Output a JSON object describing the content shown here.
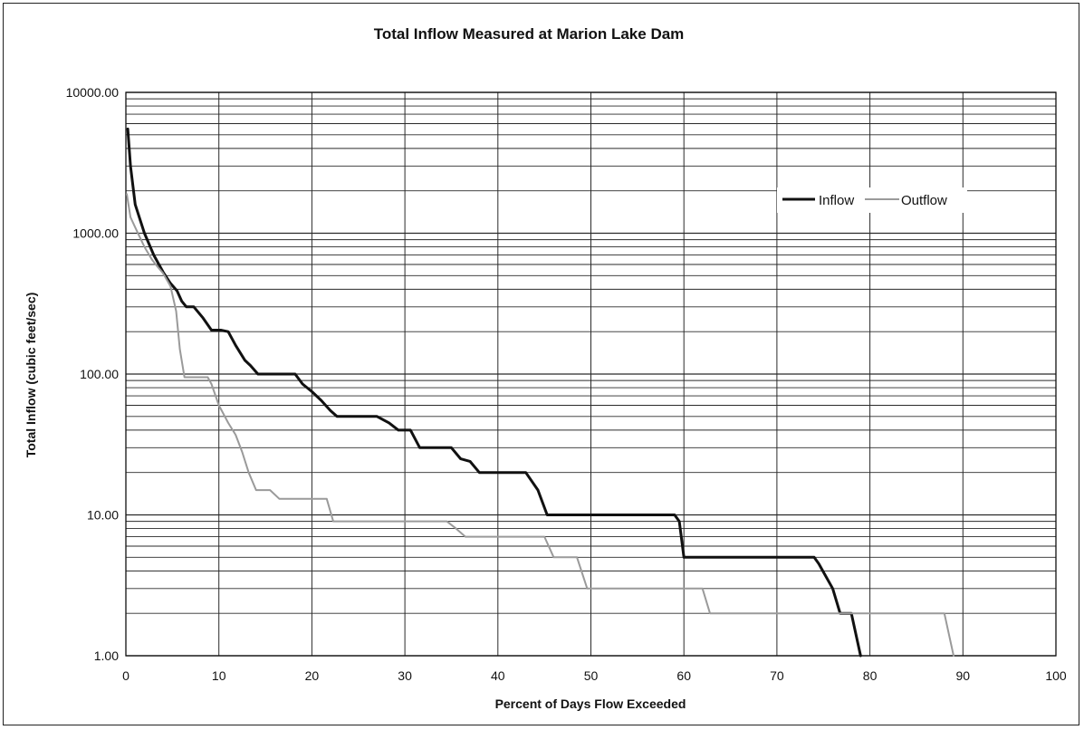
{
  "chart_data": {
    "type": "line",
    "title": "Total Inflow Measured at Marion Lake Dam",
    "xlabel": "Percent of Days Flow Exceeded",
    "ylabel": "Total Inflow (cubic feet/sec)",
    "xlim": [
      0,
      100
    ],
    "ylim": [
      1,
      10000
    ],
    "yscale": "log",
    "grid": true,
    "legend_position": "top-right",
    "x_ticks": [
      "0",
      "10",
      "20",
      "30",
      "40",
      "50",
      "60",
      "70",
      "80",
      "90",
      "100"
    ],
    "y_ticks": [
      "1.00",
      "10.00",
      "100.00",
      "1000.00",
      "10000.00"
    ],
    "colors": {
      "Inflow": "#111111",
      "Outflow": "#9a9a9a",
      "grid": "#2a2a2a"
    },
    "series": [
      {
        "name": "Inflow",
        "points": [
          [
            0.2,
            5500
          ],
          [
            0.5,
            3000
          ],
          [
            1,
            1600
          ],
          [
            2,
            1000
          ],
          [
            3,
            700
          ],
          [
            4,
            530
          ],
          [
            4.8,
            440
          ],
          [
            5.5,
            390
          ],
          [
            6,
            330
          ],
          [
            6.5,
            300
          ],
          [
            7.3,
            300
          ],
          [
            8.3,
            250
          ],
          [
            9.2,
            205
          ],
          [
            10.2,
            205
          ],
          [
            11,
            200
          ],
          [
            11.8,
            160
          ],
          [
            12.8,
            125
          ],
          [
            13.4,
            115
          ],
          [
            14.2,
            100
          ],
          [
            17,
            100
          ],
          [
            18.2,
            100
          ],
          [
            19,
            85
          ],
          [
            20,
            75
          ],
          [
            21,
            65
          ],
          [
            22,
            55
          ],
          [
            22.7,
            50
          ],
          [
            27,
            50
          ],
          [
            28.3,
            45
          ],
          [
            29.3,
            40
          ],
          [
            30.6,
            40
          ],
          [
            31.6,
            30
          ],
          [
            35,
            30
          ],
          [
            36,
            25
          ],
          [
            37,
            24
          ],
          [
            38,
            20
          ],
          [
            43,
            20
          ],
          [
            44.3,
            15
          ],
          [
            45.3,
            10
          ],
          [
            59,
            10
          ],
          [
            59.5,
            9
          ],
          [
            60,
            5
          ],
          [
            60.5,
            5
          ],
          [
            74,
            5
          ],
          [
            74.5,
            4.5
          ],
          [
            76,
            3
          ],
          [
            76.8,
            2
          ],
          [
            78,
            2
          ],
          [
            79,
            1
          ]
        ]
      },
      {
        "name": "Outflow",
        "points": [
          [
            0.1,
            1900
          ],
          [
            0.5,
            1300
          ],
          [
            1,
            1100
          ],
          [
            2,
            800
          ],
          [
            2.8,
            650
          ],
          [
            3.2,
            600
          ],
          [
            4,
            520
          ],
          [
            4.8,
            420
          ],
          [
            5.4,
            280
          ],
          [
            5.8,
            150
          ],
          [
            6.3,
            95
          ],
          [
            8.8,
            95
          ],
          [
            9.2,
            85
          ],
          [
            10,
            60
          ],
          [
            11,
            45
          ],
          [
            11.8,
            37
          ],
          [
            12.5,
            28
          ],
          [
            13.2,
            20
          ],
          [
            14,
            15
          ],
          [
            15.5,
            15
          ],
          [
            16.5,
            13
          ],
          [
            21.6,
            13
          ],
          [
            22.3,
            9
          ],
          [
            34.5,
            9
          ],
          [
            35.5,
            8
          ],
          [
            36.5,
            7
          ],
          [
            45,
            7
          ],
          [
            46,
            5
          ],
          [
            48.5,
            5
          ],
          [
            49.6,
            3
          ],
          [
            62,
            3
          ],
          [
            62.8,
            2
          ],
          [
            88,
            2
          ],
          [
            89,
            1
          ]
        ]
      }
    ]
  }
}
